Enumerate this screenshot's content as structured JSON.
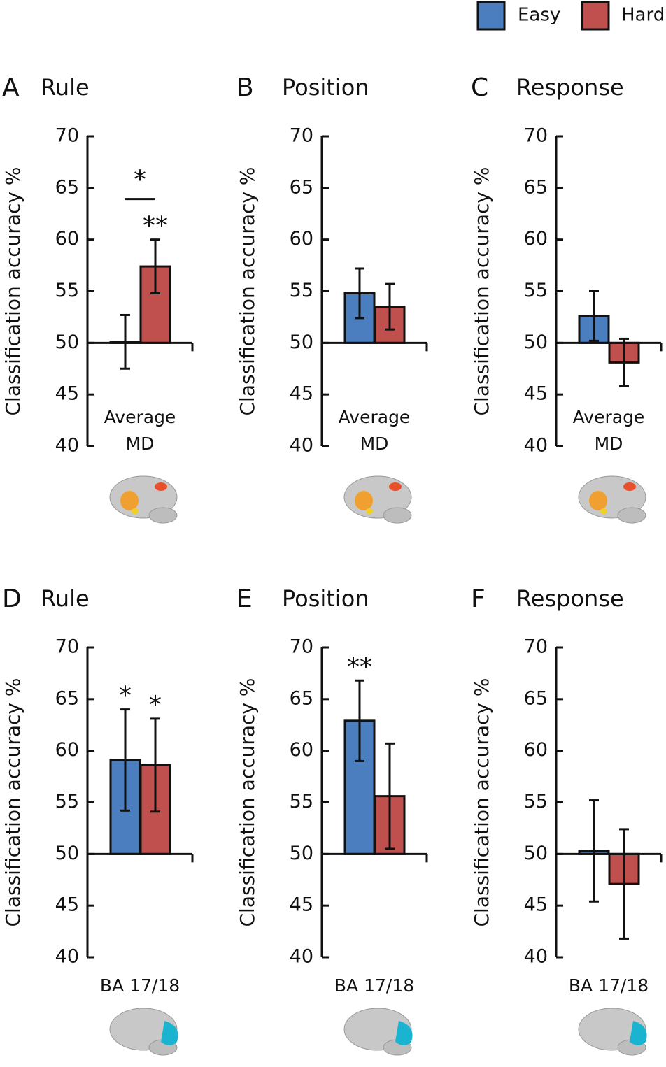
{
  "chart_data": [
    {
      "type": "bar",
      "panel": "A",
      "title": "Rule",
      "ylabel": "Classification accuracy %",
      "categories": [
        "Average MD"
      ],
      "series": [
        {
          "name": "Easy",
          "color": "#4a7ebf",
          "values": [
            50.1
          ],
          "errors": [
            2.6
          ]
        },
        {
          "name": "Hard",
          "color": "#c0504d",
          "values": [
            57.4
          ],
          "errors": [
            2.6
          ],
          "significance": "**"
        }
      ],
      "comparison": "*",
      "baseline": 50,
      "ylim": [
        40,
        70
      ],
      "yticks": [
        40,
        45,
        50,
        55,
        60,
        65,
        70
      ]
    },
    {
      "type": "bar",
      "panel": "B",
      "title": "Position",
      "ylabel": "Classification accuracy %",
      "categories": [
        "Average MD"
      ],
      "series": [
        {
          "name": "Easy",
          "color": "#4a7ebf",
          "values": [
            54.8
          ],
          "errors": [
            2.4
          ]
        },
        {
          "name": "Hard",
          "color": "#c0504d",
          "values": [
            53.5
          ],
          "errors": [
            2.2
          ]
        }
      ],
      "baseline": 50,
      "ylim": [
        40,
        70
      ],
      "yticks": [
        40,
        45,
        50,
        55,
        60,
        65,
        70
      ]
    },
    {
      "type": "bar",
      "panel": "C",
      "title": "Response",
      "ylabel": "Classification accuracy %",
      "categories": [
        "Average MD"
      ],
      "series": [
        {
          "name": "Easy",
          "color": "#4a7ebf",
          "values": [
            52.6
          ],
          "errors": [
            2.4
          ]
        },
        {
          "name": "Hard",
          "color": "#c0504d",
          "values": [
            48.1
          ],
          "errors": [
            2.3
          ]
        }
      ],
      "baseline": 50,
      "ylim": [
        40,
        70
      ],
      "yticks": [
        40,
        45,
        50,
        55,
        60,
        65,
        70
      ]
    },
    {
      "type": "bar",
      "panel": "D",
      "title": "Rule",
      "ylabel": "Classification accuracy %",
      "categories": [
        "BA 17/18"
      ],
      "series": [
        {
          "name": "Easy",
          "color": "#4a7ebf",
          "values": [
            59.1
          ],
          "errors": [
            4.9
          ],
          "significance": "*"
        },
        {
          "name": "Hard",
          "color": "#c0504d",
          "values": [
            58.6
          ],
          "errors": [
            4.5
          ],
          "significance": "*"
        }
      ],
      "baseline": 50,
      "ylim": [
        40,
        70
      ],
      "yticks": [
        40,
        45,
        50,
        55,
        60,
        65,
        70
      ]
    },
    {
      "type": "bar",
      "panel": "E",
      "title": "Position",
      "ylabel": "Classification accuracy %",
      "categories": [
        "BA 17/18"
      ],
      "series": [
        {
          "name": "Easy",
          "color": "#4a7ebf",
          "values": [
            62.9
          ],
          "errors": [
            3.9
          ],
          "significance": "**"
        },
        {
          "name": "Hard",
          "color": "#c0504d",
          "values": [
            55.6
          ],
          "errors": [
            5.1
          ]
        }
      ],
      "baseline": 50,
      "ylim": [
        40,
        70
      ],
      "yticks": [
        40,
        45,
        50,
        55,
        60,
        65,
        70
      ]
    },
    {
      "type": "bar",
      "panel": "F",
      "title": "Response",
      "ylabel": "Classification accuracy %",
      "categories": [
        "BA 17/18"
      ],
      "series": [
        {
          "name": "Easy",
          "color": "#4a7ebf",
          "values": [
            50.3
          ],
          "errors": [
            4.9
          ]
        },
        {
          "name": "Hard",
          "color": "#c0504d",
          "values": [
            47.1
          ],
          "errors": [
            5.3
          ]
        }
      ],
      "baseline": 50,
      "ylim": [
        40,
        70
      ],
      "yticks": [
        40,
        45,
        50,
        55,
        60,
        65,
        70
      ]
    }
  ]
}
